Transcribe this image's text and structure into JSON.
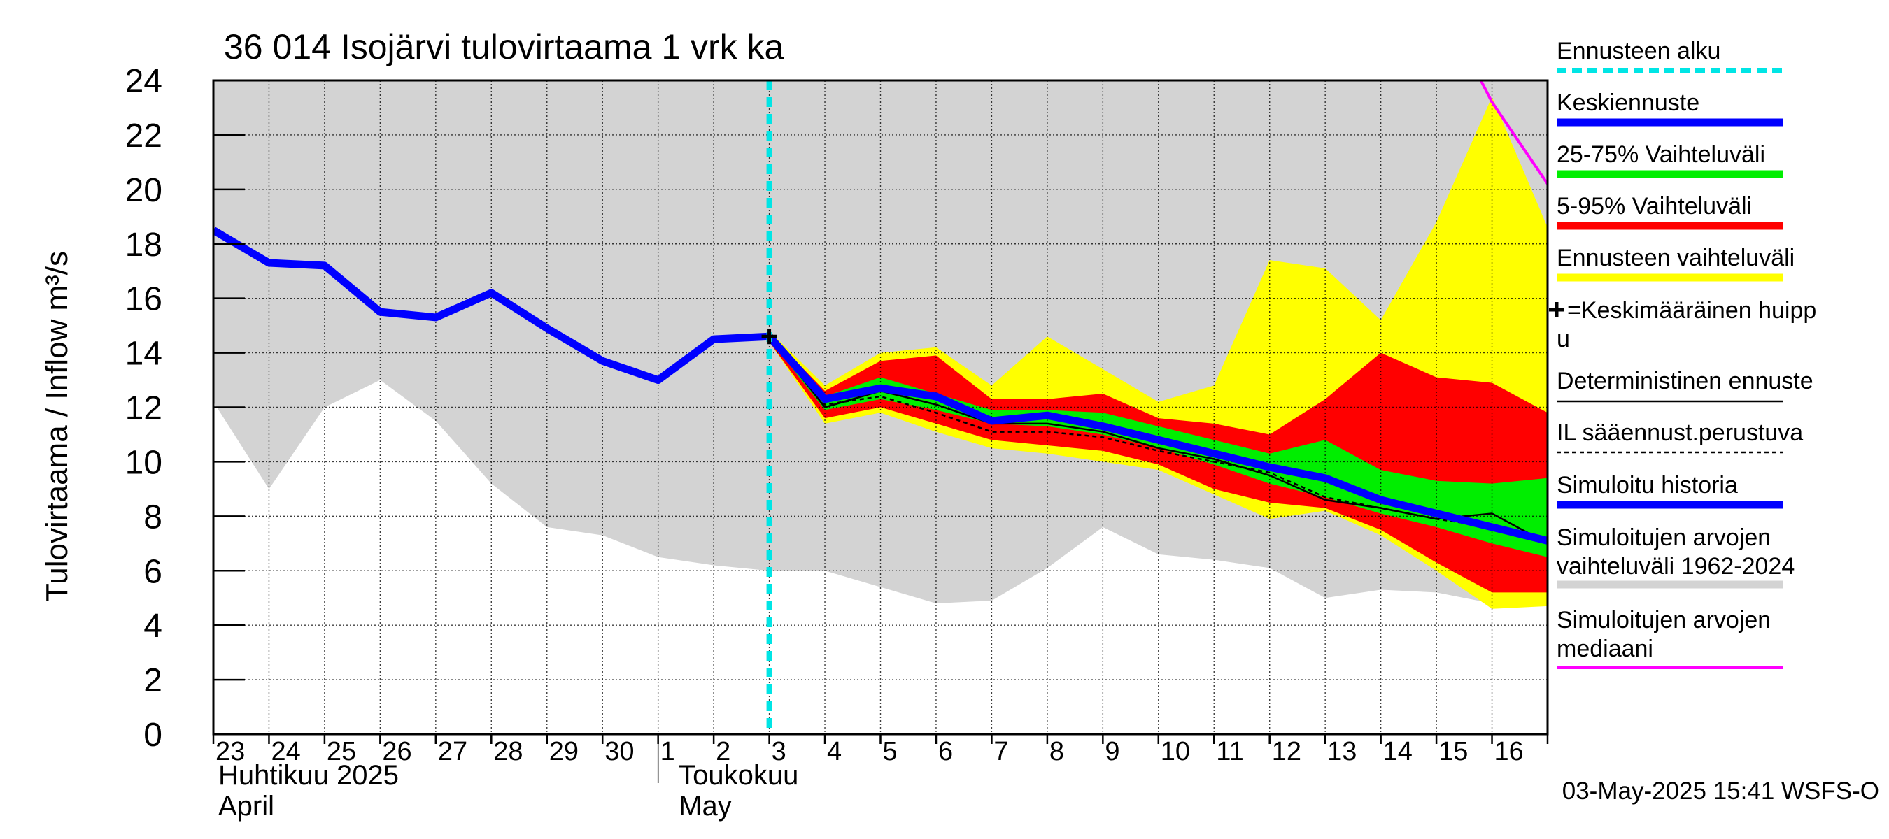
{
  "chart_data": {
    "type": "area",
    "title": "36 014 Isojärvi tulovirtaama 1 vrk ka",
    "ylabel": "Tulovirtaama / Inflow    m³/s",
    "ylim": [
      0,
      24
    ],
    "yticks": [
      0,
      2,
      4,
      6,
      8,
      10,
      12,
      14,
      16,
      18,
      20,
      22,
      24
    ],
    "grid": true,
    "legend_position": "right",
    "x_day_index_range": [
      0,
      24
    ],
    "x_tick_labels": [
      "23",
      "24",
      "25",
      "26",
      "27",
      "28",
      "29",
      "30",
      "1",
      "2",
      "3",
      "4",
      "5",
      "6",
      "7",
      "8",
      "9",
      "10",
      "11",
      "12",
      "13",
      "14",
      "15",
      "16"
    ],
    "month_labels": [
      {
        "fi": "Huhtikuu  2025",
        "en": "April"
      },
      {
        "fi": "Toukokuu",
        "en": "May"
      }
    ],
    "timestamp": "03-May-2025 15:41 WSFS-O",
    "forecast_start": 10.0,
    "mean_peak": {
      "x": 10.0,
      "y": 14.6
    },
    "series": [
      {
        "name": "Simulointujen arvojen vaihteluväli 1962-2024",
        "kind": "band",
        "color": "#d3d3d3",
        "x": [
          0,
          1,
          2,
          3,
          4,
          5,
          6,
          7,
          8,
          9,
          10,
          11,
          12,
          13,
          14,
          15,
          16,
          17,
          18,
          19,
          20,
          21,
          22,
          23,
          24
        ],
        "lower": [
          12.2,
          9.0,
          12.0,
          13.0,
          11.5,
          9.2,
          7.6,
          7.3,
          6.5,
          6.2,
          6.0,
          6.0,
          5.4,
          4.8,
          4.9,
          6.1,
          7.6,
          6.6,
          6.4,
          6.1,
          5.0,
          5.3,
          5.2,
          4.8,
          4.7
        ],
        "upper": [
          24,
          24,
          24,
          24,
          24,
          24,
          24,
          24,
          24,
          24,
          24,
          24,
          24,
          24,
          24,
          24,
          24,
          24,
          24,
          24,
          24,
          24,
          24,
          24,
          24
        ]
      },
      {
        "name": "Ennusteen vaihteluväli",
        "kind": "band",
        "color": "#ffff00",
        "x": [
          10,
          11,
          12,
          13,
          14,
          15,
          16,
          17,
          18,
          19,
          20,
          21,
          22,
          23,
          24
        ],
        "lower": [
          14.4,
          11.4,
          11.8,
          11.1,
          10.5,
          10.3,
          10.0,
          9.7,
          8.8,
          7.9,
          8.2,
          7.3,
          6.0,
          4.6,
          4.7
        ],
        "upper": [
          14.8,
          12.8,
          14.0,
          14.2,
          12.8,
          14.6,
          13.4,
          12.2,
          12.8,
          17.4,
          17.1,
          15.2,
          18.8,
          23.4,
          18.6
        ]
      },
      {
        "name": "5-95% Vaihteluväli",
        "kind": "band",
        "color": "#ff0000",
        "x": [
          10,
          11,
          12,
          13,
          14,
          15,
          16,
          17,
          18,
          19,
          20,
          21,
          22,
          23,
          24
        ],
        "lower": [
          14.4,
          11.6,
          12.0,
          11.4,
          10.8,
          10.6,
          10.4,
          9.9,
          9.0,
          8.5,
          8.3,
          7.5,
          6.3,
          5.2,
          5.2
        ],
        "upper": [
          14.7,
          12.6,
          13.7,
          13.9,
          12.3,
          12.3,
          12.5,
          11.6,
          11.4,
          11.0,
          12.3,
          14.0,
          13.1,
          12.9,
          11.8
        ]
      },
      {
        "name": "25-75% Vaihteluväli",
        "kind": "band",
        "color": "#00ee00",
        "x": [
          10,
          11,
          12,
          13,
          14,
          15,
          16,
          17,
          18,
          19,
          20,
          21,
          22,
          23,
          24
        ],
        "lower": [
          14.5,
          11.9,
          12.3,
          11.9,
          11.4,
          11.3,
          11.0,
          10.5,
          9.9,
          9.2,
          8.7,
          8.1,
          7.6,
          7.0,
          6.5
        ],
        "upper": [
          14.6,
          12.4,
          13.1,
          12.5,
          11.9,
          11.9,
          11.8,
          11.3,
          10.8,
          10.3,
          10.8,
          9.7,
          9.3,
          9.2,
          9.4
        ]
      },
      {
        "name": "Deterministinen ennuste",
        "kind": "line",
        "color": "#000000",
        "dash": false,
        "x": [
          10,
          11,
          12,
          13,
          14,
          15,
          16,
          17,
          18,
          19,
          20,
          21,
          22,
          23,
          24
        ],
        "values": [
          14.6,
          12.0,
          12.6,
          12.1,
          11.4,
          11.4,
          11.1,
          10.5,
          10.1,
          9.5,
          8.6,
          8.3,
          7.9,
          8.1,
          7.0
        ]
      },
      {
        "name": "IL sääennust.perustuva",
        "kind": "line",
        "color": "#000000",
        "dash": true,
        "x": [
          10,
          11,
          12,
          13,
          14,
          15,
          16,
          17,
          18,
          19,
          20,
          21,
          22,
          23,
          24
        ],
        "values": [
          14.6,
          12.1,
          12.4,
          11.8,
          11.1,
          11.1,
          10.9,
          10.4,
          10.0,
          9.6,
          8.7,
          8.3,
          7.9,
          7.6,
          7.0
        ]
      },
      {
        "name": "Keskiennuste",
        "kind": "line",
        "color": "#0000ff",
        "x": [
          10,
          11,
          12,
          13,
          14,
          15,
          16,
          17,
          18,
          19,
          20,
          21,
          22,
          23,
          24
        ],
        "values": [
          14.6,
          12.3,
          12.7,
          12.4,
          11.5,
          11.7,
          11.3,
          10.8,
          10.3,
          9.8,
          9.4,
          8.6,
          8.1,
          7.6,
          7.1
        ]
      },
      {
        "name": "Simuloitu historia",
        "kind": "line",
        "color": "#0000ff",
        "x": [
          0,
          1,
          2,
          3,
          4,
          5,
          6,
          7,
          8,
          9,
          10
        ],
        "values": [
          18.5,
          17.3,
          17.2,
          15.5,
          15.3,
          16.2,
          14.9,
          13.7,
          13.0,
          14.5,
          14.6
        ]
      },
      {
        "name": "Simuloitujen arvojen mediaani",
        "kind": "line",
        "color": "#ff00ff",
        "x": [
          22.8,
          23,
          24
        ],
        "values": [
          24.0,
          23.2,
          20.2
        ]
      }
    ],
    "legend": [
      {
        "label": "Ennusteen alku",
        "color": "#00e5e5",
        "style": "dashed"
      },
      {
        "label": "Keskiennuste",
        "color": "#0000ff",
        "style": "thick"
      },
      {
        "label": "25-75% Vaihteluväli",
        "color": "#00ee00",
        "style": "thick"
      },
      {
        "label": "5-95% Vaihteluväli",
        "color": "#ff0000",
        "style": "thick"
      },
      {
        "label": "Ennusteen vaihteluväli",
        "color": "#ffff00",
        "style": "thick"
      },
      {
        "label": "=Keskimääräinen huipp",
        "label2": "u",
        "color": "#000000",
        "style": "plus"
      },
      {
        "label": "Deterministinen ennuste",
        "color": "#000000",
        "style": "thin"
      },
      {
        "label": "IL sääennust.perustuva",
        "color": "#000000",
        "style": "dotted"
      },
      {
        "label": "Simuloitu historia",
        "color": "#0000ff",
        "style": "thick"
      },
      {
        "label": "Simuloitujen arvojen",
        "label2": "vaihteluväli 1962-2024",
        "color": "#d3d3d3",
        "style": "thick"
      },
      {
        "label": "Simuloitujen arvojen",
        "label2": "mediaani",
        "color": "#ff00ff",
        "style": "medium"
      }
    ]
  }
}
